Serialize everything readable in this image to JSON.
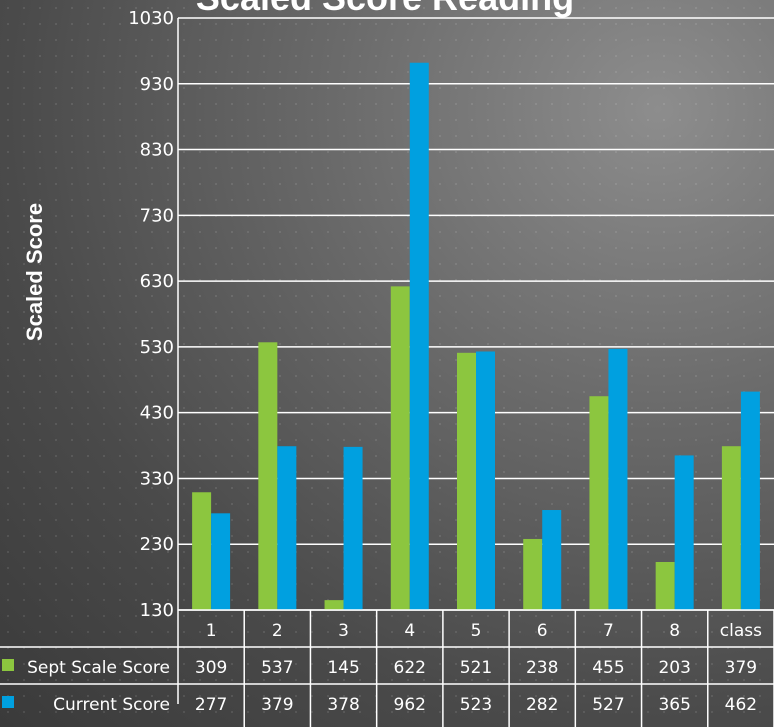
{
  "chart_data": {
    "type": "bar",
    "title": "Scaled Score Reading",
    "ylabel": "Scaled Score",
    "xlabel": "",
    "ylim": [
      130,
      1030
    ],
    "yticks": [
      130,
      230,
      330,
      430,
      530,
      630,
      730,
      830,
      930,
      1030
    ],
    "grid": true,
    "categories": [
      "1",
      "2",
      "3",
      "4",
      "5",
      "6",
      "7",
      "8",
      "class"
    ],
    "series": [
      {
        "name": "Sept Scale Score",
        "color": "#8cc63f",
        "values": [
          309,
          537,
          145,
          622,
          521,
          238,
          455,
          203,
          379
        ]
      },
      {
        "name": "Current Score",
        "color": "#00a0e0",
        "values": [
          277,
          379,
          378,
          962,
          523,
          282,
          527,
          365,
          462
        ]
      }
    ]
  }
}
